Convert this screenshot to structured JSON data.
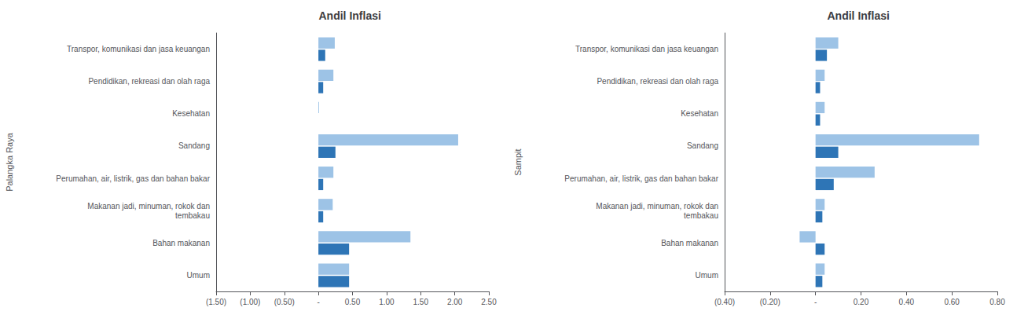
{
  "chart_data": [
    {
      "type": "bar",
      "orientation": "horizontal",
      "title": "Andil Inflasi",
      "ylabel": "Palangka Raya",
      "categories": [
        "Transpor, komunikasi dan jasa keuangan",
        "Pendidikan, rekreasi dan olah raga",
        "Kesehatan",
        "Sandang",
        "Perumahan, air, listrik, gas dan bahan bakar",
        "Makanan jadi, minuman, rokok dan\ntembakau",
        "Bahan makanan",
        "Umum"
      ],
      "series": [
        {
          "color": "#9DC3E6",
          "values": [
            0.24,
            0.22,
            0.01,
            2.05,
            0.22,
            0.21,
            1.35,
            0.45
          ]
        },
        {
          "color": "#2E75B6",
          "values": [
            0.1,
            0.07,
            0.0,
            0.25,
            0.07,
            0.07,
            0.45,
            0.45
          ]
        }
      ],
      "xlim": [
        -1.5,
        2.5
      ],
      "xticks": [
        {
          "value": -1.5,
          "label": "(1.50)"
        },
        {
          "value": -1.0,
          "label": "(1.00)"
        },
        {
          "value": -0.5,
          "label": "(0.50)"
        },
        {
          "value": 0.0,
          "label": "-"
        },
        {
          "value": 0.5,
          "label": "0.50"
        },
        {
          "value": 1.0,
          "label": "1.00"
        },
        {
          "value": 1.5,
          "label": "1.50"
        },
        {
          "value": 2.0,
          "label": "2.00"
        },
        {
          "value": 2.5,
          "label": "2.50"
        }
      ],
      "grid": false
    },
    {
      "type": "bar",
      "orientation": "horizontal",
      "title": "Andil Inflasi",
      "ylabel": "Sampit",
      "categories": [
        "Transpor, komunikasi dan jasa keuangan",
        "Pendidikan, rekreasi dan olah raga",
        "Kesehatan",
        "Sandang",
        "Perumahan, air, listrik, gas dan bahan bakar",
        "Makanan jadi, minuman, rokok dan\ntembakau",
        "Bahan makanan",
        "Umum"
      ],
      "series": [
        {
          "color": "#9DC3E6",
          "values": [
            0.1,
            0.04,
            0.04,
            0.72,
            0.26,
            0.04,
            -0.07,
            0.04
          ]
        },
        {
          "color": "#2E75B6",
          "values": [
            0.05,
            0.02,
            0.02,
            0.1,
            0.08,
            0.03,
            0.04,
            0.03
          ]
        }
      ],
      "xlim": [
        -0.4,
        0.8
      ],
      "xticks": [
        {
          "value": -0.4,
          "label": "(0.40)"
        },
        {
          "value": -0.2,
          "label": "(0.20)"
        },
        {
          "value": 0.0,
          "label": "-"
        },
        {
          "value": 0.2,
          "label": "0.20"
        },
        {
          "value": 0.4,
          "label": "0.40"
        },
        {
          "value": 0.6,
          "label": "0.60"
        },
        {
          "value": 0.8,
          "label": "0.80"
        }
      ],
      "grid": false
    }
  ]
}
